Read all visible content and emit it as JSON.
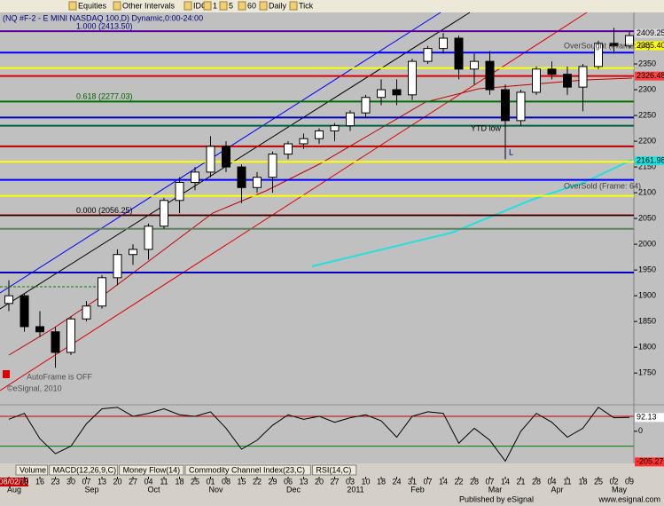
{
  "toolbar": {
    "items": [
      "Equities",
      "Other Intervals",
      "IDC",
      "1",
      "5",
      "60",
      "Daily",
      "Tick"
    ]
  },
  "chart_data": [
    {
      "type": "candlestick",
      "title": "(NQ #F-2 - E MINI NASDAQ 100,D) Dynamic,0:00-24:00",
      "categories": [
        "08/02/10",
        "09",
        "16",
        "23",
        "30",
        "07",
        "13",
        "20",
        "27",
        "04",
        "11",
        "18",
        "25",
        "01",
        "08",
        "15",
        "22",
        "29",
        "06",
        "13",
        "20",
        "27",
        "03",
        "10",
        "18",
        "24",
        "31",
        "07",
        "14",
        "22",
        "28",
        "07",
        "14",
        "21",
        "28",
        "04",
        "11",
        "18",
        "25",
        "02",
        "09"
      ],
      "months": [
        "Aug",
        "Sep",
        "Oct",
        "Nov",
        "Dec",
        "2011",
        "Feb",
        "Mar",
        "Apr",
        "May"
      ],
      "open": [
        1885,
        1900,
        1840,
        1830,
        1790,
        1855,
        1880,
        1935,
        1980,
        1990,
        2035,
        2085,
        2120,
        2140,
        2190,
        2150,
        2110,
        2130,
        2175,
        2195,
        2205,
        2220,
        2230,
        2255,
        2285,
        2300,
        2290,
        2355,
        2380,
        2400,
        2340,
        2355,
        2300,
        2240,
        2295,
        2340,
        2330,
        2305,
        2345,
        2390,
        2385
      ],
      "high": [
        1930,
        1905,
        1870,
        1840,
        1860,
        1890,
        1940,
        1990,
        2000,
        2040,
        2090,
        2130,
        2150,
        2210,
        2200,
        2155,
        2140,
        2180,
        2200,
        2215,
        2225,
        2235,
        2260,
        2290,
        2320,
        2320,
        2360,
        2385,
        2410,
        2405,
        2370,
        2375,
        2310,
        2300,
        2345,
        2355,
        2345,
        2350,
        2395,
        2420,
        2412
      ],
      "low": [
        1870,
        1830,
        1820,
        1760,
        1785,
        1850,
        1875,
        1920,
        1960,
        1970,
        2030,
        2060,
        2105,
        2130,
        2140,
        2080,
        2100,
        2100,
        2165,
        2185,
        2195,
        2200,
        2220,
        2245,
        2270,
        2270,
        2280,
        2350,
        2370,
        2320,
        2310,
        2290,
        2165,
        2230,
        2290,
        2320,
        2290,
        2258,
        2340,
        2370,
        2380
      ],
      "close": [
        1900,
        1840,
        1830,
        1790,
        1855,
        1880,
        1935,
        1980,
        1990,
        2035,
        2085,
        2120,
        2140,
        2190,
        2150,
        2110,
        2130,
        2175,
        2195,
        2205,
        2220,
        2230,
        2255,
        2285,
        2300,
        2290,
        2355,
        2380,
        2400,
        2340,
        2355,
        2300,
        2240,
        2295,
        2340,
        2330,
        2305,
        2345,
        2390,
        2385,
        2405
      ],
      "up_color": "#ffffff",
      "down_color": "#000000",
      "ylim": [
        1690,
        2450
      ],
      "yticks": [
        1750,
        1800,
        1850,
        1900,
        1950,
        2000,
        2050,
        2100,
        2150,
        2200,
        2250,
        2300,
        2350
      ],
      "levels": [
        {
          "value": 2413.5,
          "color": "#c000c0"
        },
        {
          "value": 2372,
          "color": "#0000ff"
        },
        {
          "value": 2342,
          "color": "#ffff00"
        },
        {
          "value": 2326.48,
          "color": "#e00000"
        },
        {
          "value": 2277.03,
          "color": "#008000"
        },
        {
          "value": 2246,
          "color": "#0000c0"
        },
        {
          "value": 2230,
          "color": "#006040"
        },
        {
          "value": 2190,
          "color": "#c00000"
        },
        {
          "value": 2160,
          "color": "#ffff00"
        },
        {
          "value": 2125,
          "color": "#0000ff"
        },
        {
          "value": 2094,
          "color": "#ffff00"
        },
        {
          "value": 2056.25,
          "color": "#a00000"
        },
        {
          "value": 2030,
          "color": "#608060"
        },
        {
          "value": 1945,
          "color": "#0000c0"
        }
      ],
      "fib_levels": [
        {
          "value": 2413.5,
          "label": "1.000 (2413.50)",
          "color": "#00007f"
        },
        {
          "value": 2277.03,
          "label": "0.618 (2277.03)",
          "color": "#006000"
        },
        {
          "value": 2056.25,
          "label": "0.000 (2056.25)",
          "color": "#000000"
        }
      ],
      "price_labels": [
        {
          "value": 2409.25,
          "label": "2409.25",
          "color": "#d8d8d8"
        },
        {
          "value": 2385.4,
          "label": "2385.40",
          "color": "#ffff00"
        },
        {
          "value": 2326.48,
          "label": "2326.48",
          "color": "#ff4040"
        },
        {
          "value": 2161.98,
          "label": "2161.98",
          "color": "#20e0e0"
        }
      ],
      "annotations": [
        "YTD low",
        "L",
        "OverSought (Frame: 64)",
        "OverSold (Frame: 64)",
        "AutoFrame is OFF",
        "©eSignal, 2010"
      ]
    },
    {
      "type": "line",
      "name": "CCI",
      "color": "#000000",
      "values": [
        80,
        120,
        -50,
        -150,
        -100,
        50,
        150,
        160,
        100,
        120,
        150,
        110,
        100,
        130,
        20,
        -120,
        -60,
        40,
        110,
        80,
        100,
        60,
        90,
        110,
        70,
        -40,
        100,
        130,
        120,
        -80,
        20,
        -60,
        -200,
        0,
        120,
        60,
        -40,
        20,
        160,
        90,
        92.13
      ],
      "ylim": [
        -215,
        165
      ],
      "yticks": [
        0
      ],
      "levels": [
        {
          "value": 100,
          "color": "#c00000"
        },
        {
          "value": -100,
          "color": "#008000"
        }
      ],
      "price_labels": [
        {
          "value": 92.13,
          "label": "92.13",
          "color": "#ffffff"
        },
        {
          "value": -205.27,
          "label": "-205.27",
          "color": "#ff3030"
        }
      ]
    }
  ],
  "tabs": [
    "Volume",
    "MACD(12,26,9,C)",
    "Money Flow(14)",
    "Commodity Channel Index(23,C)",
    "RSI(14,C)"
  ],
  "footer": {
    "publisher": "Published by eSignal",
    "url": "www.esignal.com"
  }
}
